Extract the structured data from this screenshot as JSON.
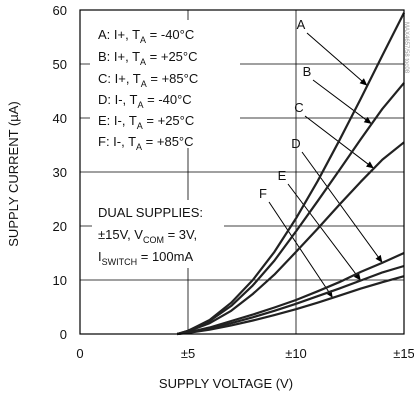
{
  "chart_data": {
    "type": "line",
    "xlabel": "SUPPLY VOLTAGE (V)",
    "ylabel": "SUPPLY CURRENT (µA)",
    "xlim": [
      0,
      15
    ],
    "ylim": [
      0,
      60
    ],
    "x_ticks": [
      0,
      5,
      10,
      15
    ],
    "x_tick_labels": [
      "0",
      "±5",
      "±10",
      "±15"
    ],
    "y_ticks": [
      0,
      10,
      20,
      30,
      40,
      50,
      60
    ],
    "y_tick_labels": [
      "0",
      "10",
      "20",
      "30",
      "40",
      "50",
      "60"
    ],
    "grid": true,
    "x": [
      4.5,
      5,
      6,
      7,
      8,
      9,
      10,
      11,
      12,
      13,
      14,
      15
    ],
    "series": [
      {
        "name": "A",
        "values": [
          0,
          0.6,
          2.6,
          5.8,
          10,
          15.2,
          21.4,
          28.3,
          35.8,
          43.6,
          51.6,
          59.5
        ]
      },
      {
        "name": "B",
        "values": [
          0,
          0.6,
          2.4,
          5.2,
          9,
          13.6,
          19,
          24.6,
          30.3,
          36.1,
          41.7,
          46.5
        ]
      },
      {
        "name": "C",
        "values": [
          0,
          0.5,
          2.0,
          4.3,
          7.4,
          11.0,
          15.2,
          19.5,
          23.9,
          28.2,
          32.3,
          35.5
        ]
      },
      {
        "name": "D",
        "values": [
          0,
          0.3,
          1.2,
          2.4,
          3.6,
          4.9,
          6.3,
          7.9,
          9.6,
          11.5,
          13.2,
          15.0
        ]
      },
      {
        "name": "E",
        "values": [
          0,
          0.3,
          1.0,
          2.0,
          3.1,
          4.3,
          5.6,
          7.0,
          8.4,
          9.9,
          11.4,
          12.6
        ]
      },
      {
        "name": "F",
        "values": [
          0,
          0.2,
          0.8,
          1.6,
          2.5,
          3.5,
          4.6,
          5.8,
          7.1,
          8.4,
          9.6,
          10.7
        ]
      }
    ],
    "legend": {
      "placement": "top-left",
      "entries": [
        {
          "main": "A: I+, T",
          "sub": "A",
          "rest": " = -40°C"
        },
        {
          "main": "B: I+, T",
          "sub": "A",
          "rest": " = +25°C"
        },
        {
          "main": "C: I+, T",
          "sub": "A",
          "rest": " = +85°C"
        },
        {
          "main": "D: I-, T",
          "sub": "A",
          "rest": " = -40°C"
        },
        {
          "main": "E: I-, T",
          "sub": "A",
          "rest": " = +25°C"
        },
        {
          "main": "F: I-, T",
          "sub": "A",
          "rest": " = +85°C"
        }
      ]
    },
    "annotations": {
      "note_line1": "DUAL SUPPLIES:",
      "note_line2_a": "±15V, V",
      "note_line2_sub": "COM",
      "note_line2_b": " = 3V,",
      "note_line3_a": "I",
      "note_line3_sub": "SWITCH",
      "note_line3_b": " = 100mA",
      "curve_labels": [
        "A",
        "B",
        "C",
        "D",
        "E",
        "F"
      ]
    },
    "watermark": "MAX4657/58 toc08"
  }
}
